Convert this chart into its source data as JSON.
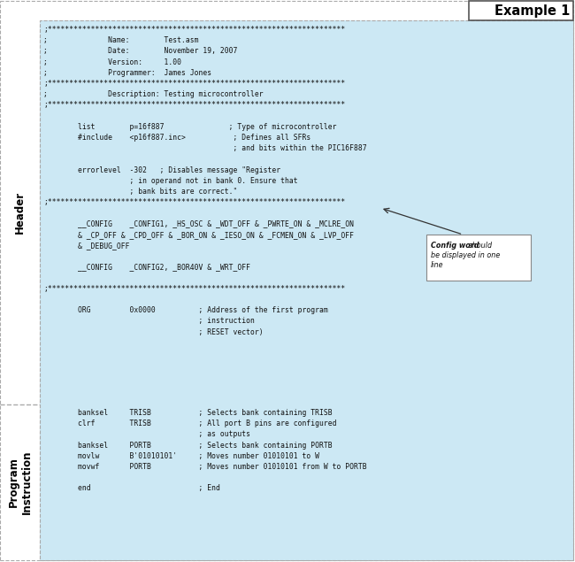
{
  "title": "Example 1",
  "bg_color": "#cce8f4",
  "white_bg": "#ffffff",
  "header_label": "Header",
  "program_label": "Program\nInstruction",
  "header_lines": [
    ";*********************************************************************",
    ";              Name:        Test.asm",
    ";              Date:        November 19, 2007",
    ";              Version:     1.00",
    ";              Programmer:  James Jones",
    ";*********************************************************************",
    ";              Description: Testing microcontroller",
    ";*********************************************************************",
    "",
    "        list        p=16f887               ; Type of microcontroller",
    "        #include    <p16f887.inc>           ; Defines all SFRs",
    "                                            ; and bits within the PIC16F887",
    "",
    "        errorlevel  -302   ; Disables message \"Register",
    "                    ; in operand not in bank 0. Ensure that",
    "                    ; bank bits are correct.\"",
    ";*********************************************************************",
    "",
    "        __CONFIG    _CONFIG1, _HS_OSC & _WDT_OFF & _PWRTE_ON & _MCLRE_ON",
    "        & _CP_OFF & _CPD_OFF & _BOR_ON & _IESO_ON & _FCMEN_ON & _LVP_OFF",
    "        & _DEBUG_OFF",
    "",
    "        __CONFIG    _CONFIG2, _BOR40V & _WRT_OFF",
    "",
    ";*********************************************************************",
    "",
    "        ORG         0x0000          ; Address of the first program",
    "                                    ; instruction",
    "                                    ; RESET vector)"
  ],
  "program_lines": [
    "        banksel     TRISB           ; Selects bank containing TRISB",
    "        clrf        TRISB           ; All port B pins are configured",
    "                                    ; as outputs",
    "        banksel     PORTB           ; Selects bank containing PORTB",
    "        movlw       B'01010101'     ; Moves number 01010101 to W",
    "        movwf       PORTB           ; Moves number 01010101 from W to PORTB",
    "",
    "        end                         ; End"
  ],
  "callout_bold": "Config word",
  "callout_rest": " should\nbe displayed in one\nline",
  "font_size": 5.8,
  "label_font_size": 8.5,
  "title_font_size": 10.5
}
